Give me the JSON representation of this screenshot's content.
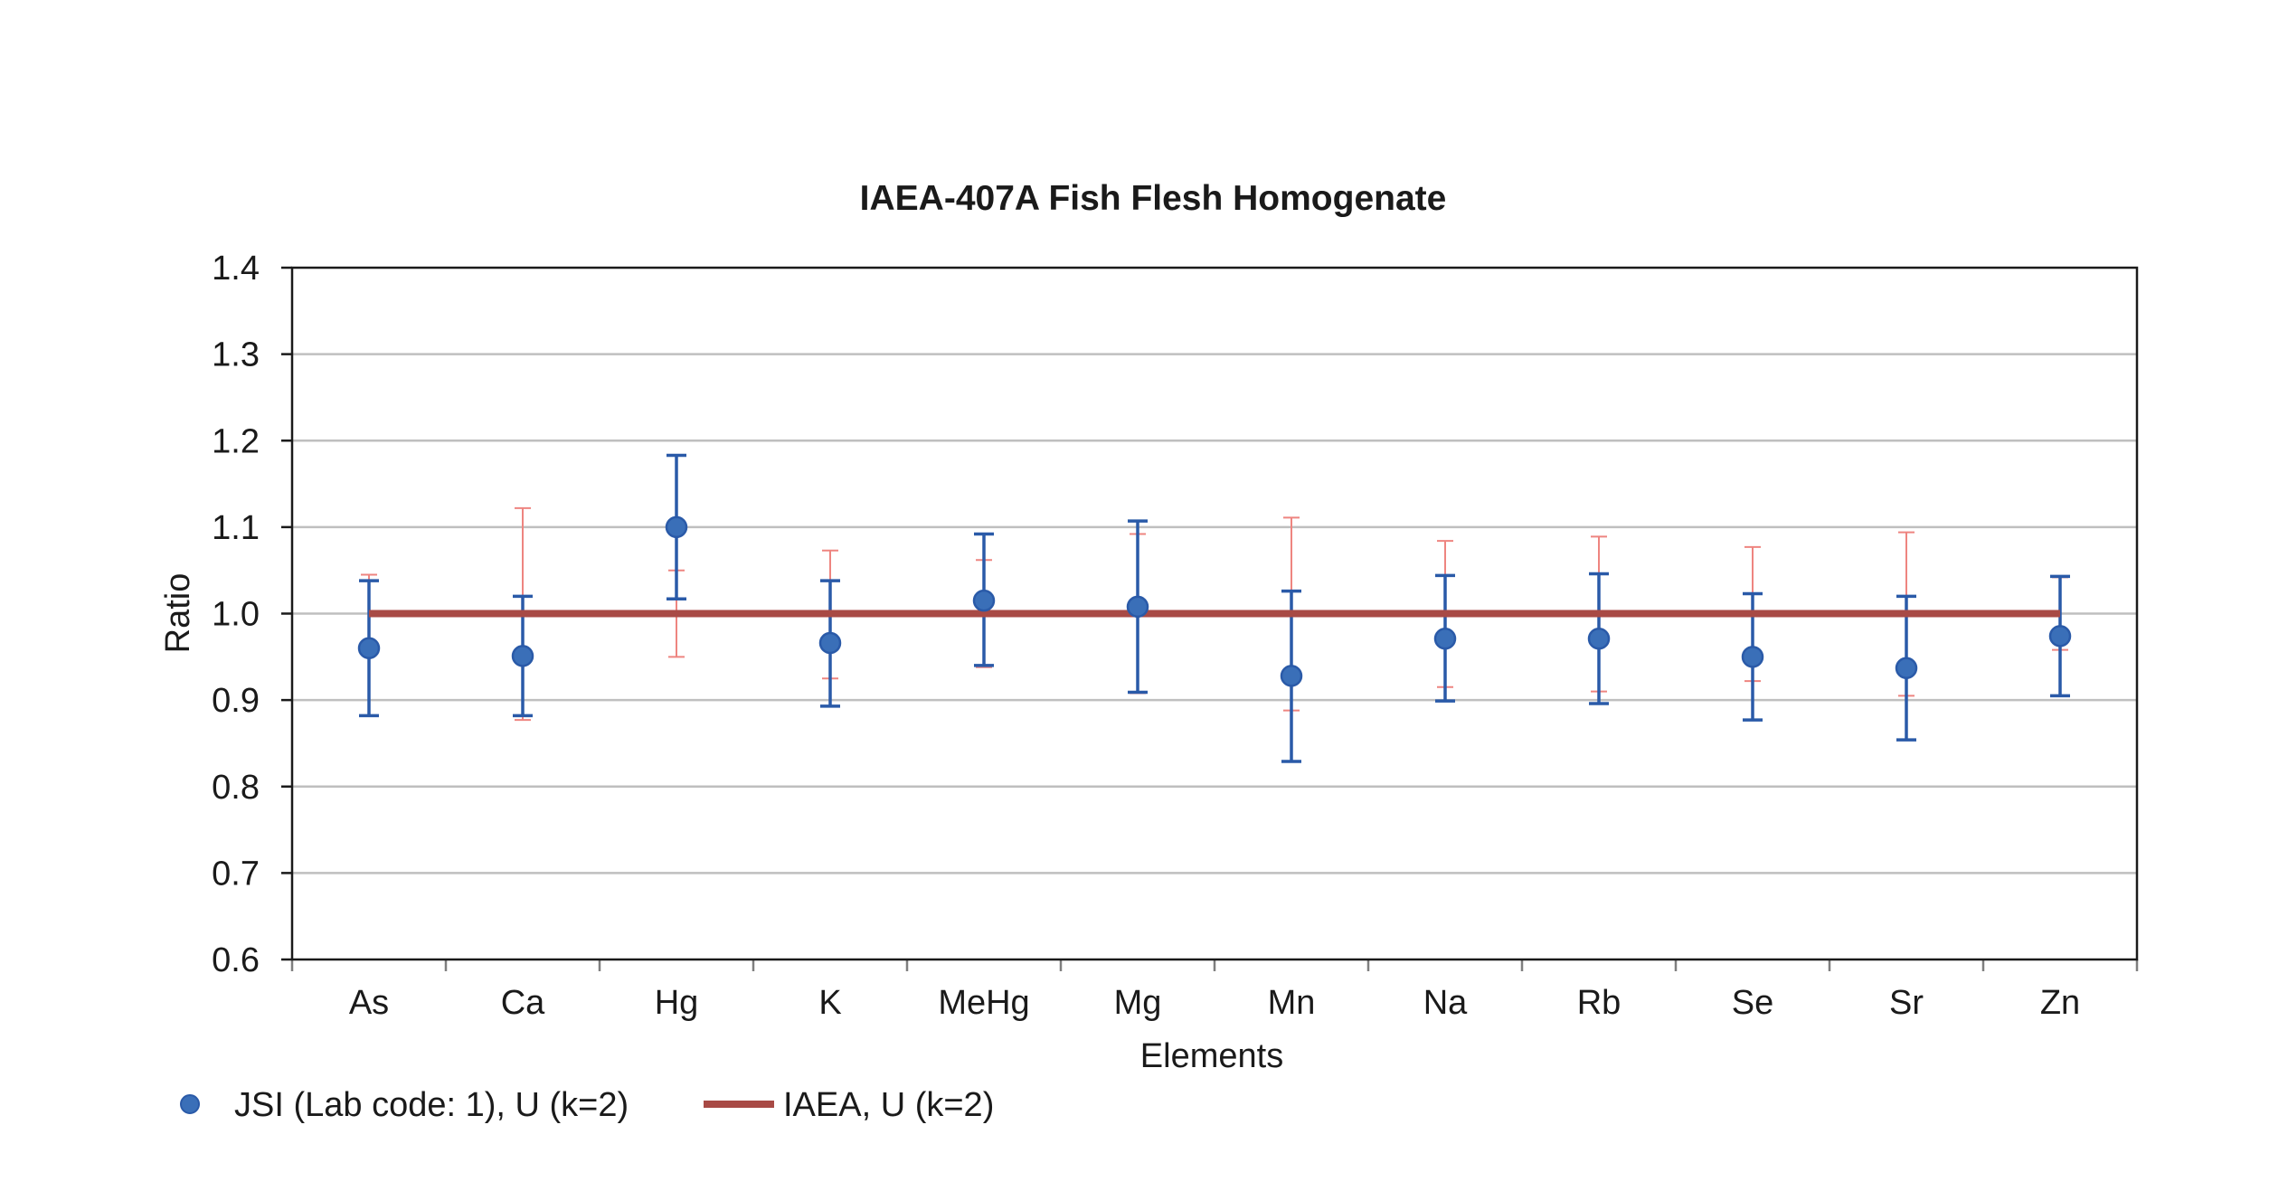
{
  "chart_data": {
    "type": "scatter",
    "title": "IAEA-407A Fish Flesh Homogenate",
    "xlabel": "Elements",
    "ylabel": "Ratio",
    "categories": [
      "As",
      "Ca",
      "Hg",
      "K",
      "MeHg",
      "Mg",
      "Mn",
      "Na",
      "Rb",
      "Se",
      "Sr",
      "Zn"
    ],
    "ylim": [
      0.6,
      1.4
    ],
    "yticks": [
      0.6,
      0.7,
      0.8,
      0.9,
      1.0,
      1.1,
      1.2,
      1.3,
      1.4
    ],
    "ytick_labels": [
      "0.6",
      "0.7",
      "0.8",
      "0.9",
      "1.0",
      "1.1",
      "1.2",
      "1.3",
      "1.4"
    ],
    "grid": true,
    "legend_position": "bottom-left",
    "series": [
      {
        "name": "JSI (Lab code: 1), U (k=2)",
        "kind": "points-with-errorbars",
        "color": "#3a6fb8",
        "errbar_color": "#2a5aa8",
        "values": [
          0.96,
          0.951,
          1.1,
          0.966,
          1.015,
          1.008,
          0.928,
          0.971,
          0.971,
          0.95,
          0.937,
          0.974
        ],
        "lower": [
          0.882,
          0.882,
          1.017,
          0.893,
          0.94,
          0.909,
          0.829,
          0.899,
          0.896,
          0.877,
          0.854,
          0.905
        ],
        "upper": [
          1.038,
          1.02,
          1.183,
          1.038,
          1.092,
          1.107,
          1.026,
          1.044,
          1.046,
          1.023,
          1.02,
          1.043
        ]
      },
      {
        "name": "IAEA, U (k=2)",
        "kind": "reference-line-with-errorbars",
        "color": "#a84a45",
        "errbar_color": "#ee8580",
        "values": [
          1.0,
          1.0,
          1.0,
          1.0,
          1.0,
          1.0,
          1.0,
          1.0,
          1.0,
          1.0,
          1.0,
          1.0
        ],
        "lower": [
          0.955,
          0.877,
          0.95,
          0.925,
          0.938,
          0.908,
          0.888,
          0.915,
          0.91,
          0.922,
          0.905,
          0.958
        ],
        "upper": [
          1.045,
          1.122,
          1.05,
          1.073,
          1.062,
          1.092,
          1.111,
          1.084,
          1.089,
          1.077,
          1.094,
          1.042
        ]
      }
    ]
  }
}
